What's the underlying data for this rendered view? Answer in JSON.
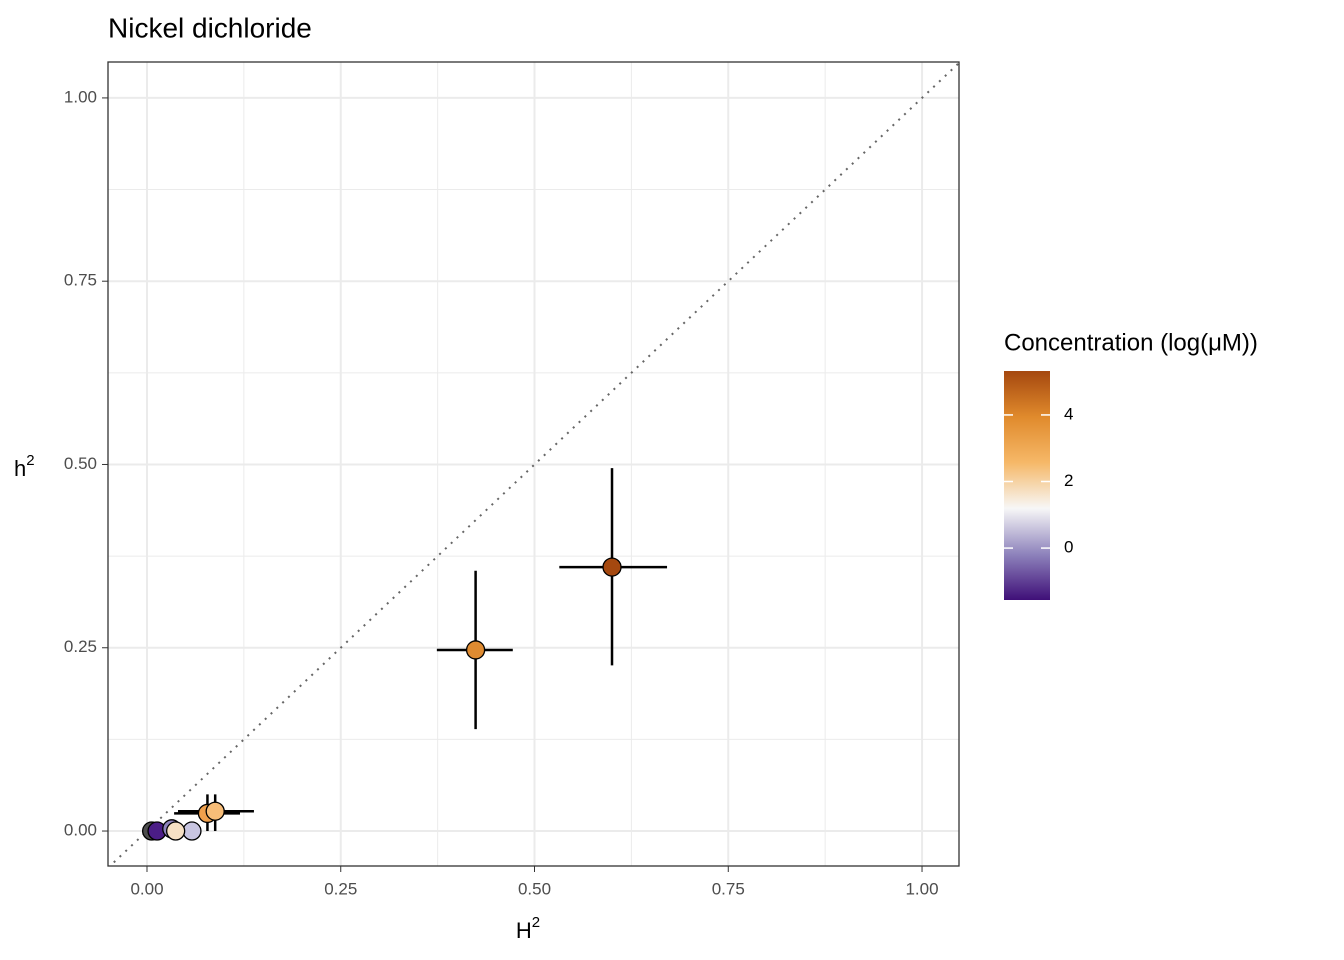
{
  "chart_data": {
    "type": "scatter",
    "title": "Nickel dichloride",
    "x_label": {
      "base": "H",
      "sup": "2"
    },
    "y_label": {
      "base": "h",
      "sup": "2"
    },
    "xlim": [
      -0.0503,
      1.0477
    ],
    "ylim": [
      -0.0477,
      1.049
    ],
    "xticks": [
      {
        "value": 0,
        "label": "0.00"
      },
      {
        "value": 0.25,
        "label": "0.25"
      },
      {
        "value": 0.5,
        "label": "0.50"
      },
      {
        "value": 0.75,
        "label": "0.75"
      },
      {
        "value": 1,
        "label": "1.00"
      }
    ],
    "yticks": [
      {
        "value": 0,
        "label": "0.00"
      },
      {
        "value": 0.25,
        "label": "0.25"
      },
      {
        "value": 0.5,
        "label": "0.50"
      },
      {
        "value": 0.75,
        "label": "0.75"
      },
      {
        "value": 1,
        "label": "1.00"
      }
    ],
    "xminor": [
      0.125,
      0.375,
      0.625,
      0.875
    ],
    "yminor": [
      0.125,
      0.375,
      0.625,
      0.875
    ],
    "grid": true,
    "x": [
      0.006,
      0.013,
      0.032,
      0.058,
      0.037,
      0.078,
      0.088,
      0.424,
      0.6
    ],
    "y": [
      0,
      0,
      0.003,
      0,
      0,
      0.024,
      0.027,
      0.247,
      0.36
    ],
    "x_low": [
      0.0,
      0.005,
      0.02,
      0.045,
      0.025,
      0.035,
      0.04,
      0.374,
      0.532
    ],
    "x_high": [
      0.012,
      0.02,
      0.045,
      0.07,
      0.05,
      0.12,
      0.138,
      0.472,
      0.671
    ],
    "y_low": [
      -0.002,
      -0.002,
      -0.002,
      -0.002,
      -0.002,
      0.0,
      0.0,
      0.139,
      0.226
    ],
    "y_high": [
      0.002,
      0.002,
      0.008,
      0.002,
      0.002,
      0.05,
      0.05,
      0.355,
      0.495
    ],
    "colors": [
      "#4d4d4d",
      "#4b1d86",
      "#8e83bc",
      "#c8c5e1",
      "#f6e0c4",
      "#f0a04c",
      "#f7bd78",
      "#df8b31",
      "#a5480f"
    ],
    "colorbar": {
      "title": "Concentration (log(μM))",
      "lim": [
        -1.56,
        5.32
      ],
      "ticks": [
        0,
        2,
        4
      ],
      "stops": [
        "#3f0f78",
        "#8e83bc",
        "#f7f7f7",
        "#f6b868",
        "#e08a2c",
        "#a5480f"
      ]
    }
  }
}
